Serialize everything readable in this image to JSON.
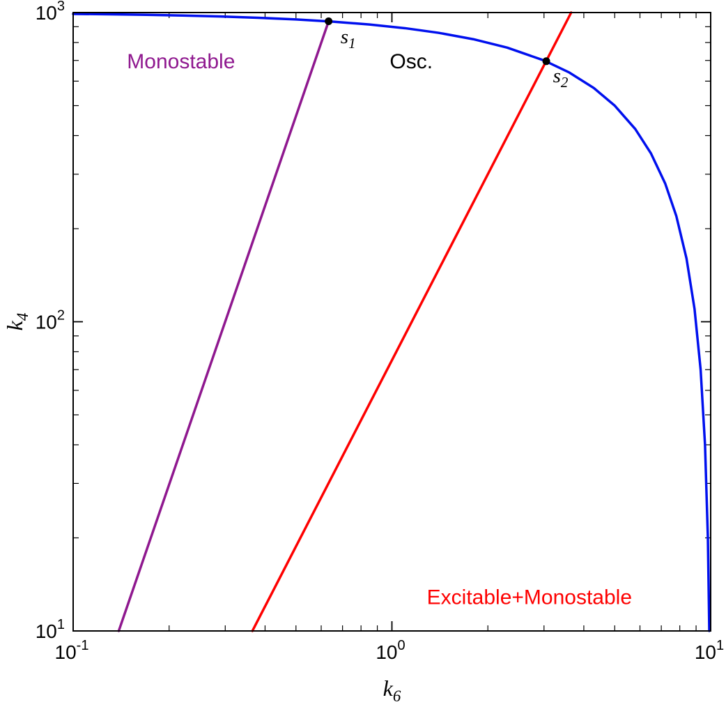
{
  "chart_data": {
    "type": "line",
    "title": "",
    "xlabel": {
      "text": "k",
      "sub": "6"
    },
    "ylabel": {
      "text": "k",
      "sub": "4"
    },
    "xscale": "log",
    "yscale": "log",
    "xlim": [
      0.1,
      10
    ],
    "ylim": [
      10,
      1000
    ],
    "grid": false,
    "frame": true,
    "frame_color": "#000000",
    "x_ticks": [
      {
        "value": 0.1,
        "base": "10",
        "exp": "-1"
      },
      {
        "value": 1,
        "base": "10",
        "exp": "0"
      },
      {
        "value": 10,
        "base": "10",
        "exp": "1"
      }
    ],
    "y_ticks": [
      {
        "value": 10,
        "base": "10",
        "exp": "1"
      },
      {
        "value": 100,
        "base": "10",
        "exp": "2"
      },
      {
        "value": 1000,
        "base": "10",
        "exp": "3"
      }
    ],
    "series": [
      {
        "name": "hopf-boundary",
        "color": "#0010ee",
        "width": 3.5,
        "x": [
          0.1,
          0.13,
          0.17,
          0.22,
          0.29,
          0.38,
          0.5,
          0.65,
          0.85,
          1.1,
          1.4,
          1.8,
          2.3,
          3.0,
          3.6,
          4.3,
          5.0,
          5.8,
          6.5,
          7.2,
          7.8,
          8.4,
          8.9,
          9.3,
          9.6,
          9.8,
          9.9
        ],
        "y": [
          990,
          987,
          983,
          978,
          971,
          962,
          950,
          935,
          915,
          890,
          860,
          820,
          770,
          700,
          640,
          570,
          500,
          420,
          350,
          280,
          220,
          160,
          110,
          70,
          40,
          20,
          10
        ]
      },
      {
        "name": "monostable-boundary",
        "color": "#8f188f",
        "width": 3.5,
        "x": [
          0.139,
          0.633
        ],
        "y": [
          10,
          937
        ]
      },
      {
        "name": "excitable-boundary",
        "color": "#fe0000",
        "width": 3.5,
        "x": [
          0.365,
          3.651
        ],
        "y": [
          10,
          1000
        ]
      }
    ],
    "points": [
      {
        "name": "s1",
        "x": 0.633,
        "y": 937,
        "color": "#000000",
        "radius": 5.5,
        "label": {
          "text": "s",
          "sub": "1"
        },
        "label_x": 0.69,
        "label_y": 795
      },
      {
        "name": "s2",
        "x": 3.05,
        "y": 696,
        "color": "#000000",
        "radius": 5.5,
        "label": {
          "text": "s",
          "sub": "2"
        },
        "label_x": 3.2,
        "label_y": 595
      }
    ],
    "annotations": [
      {
        "name": "region-monostable",
        "text": "Monostable",
        "color": "#8f188f",
        "x": 0.218,
        "y": 660
      },
      {
        "name": "region-osc",
        "text": "Osc.",
        "color": "#000000",
        "x": 1.15,
        "y": 660
      },
      {
        "name": "region-excitable-monostable",
        "text": "Excitable+Monostable",
        "color": "#fe0000",
        "x": 2.7,
        "y": 12.2
      }
    ]
  }
}
